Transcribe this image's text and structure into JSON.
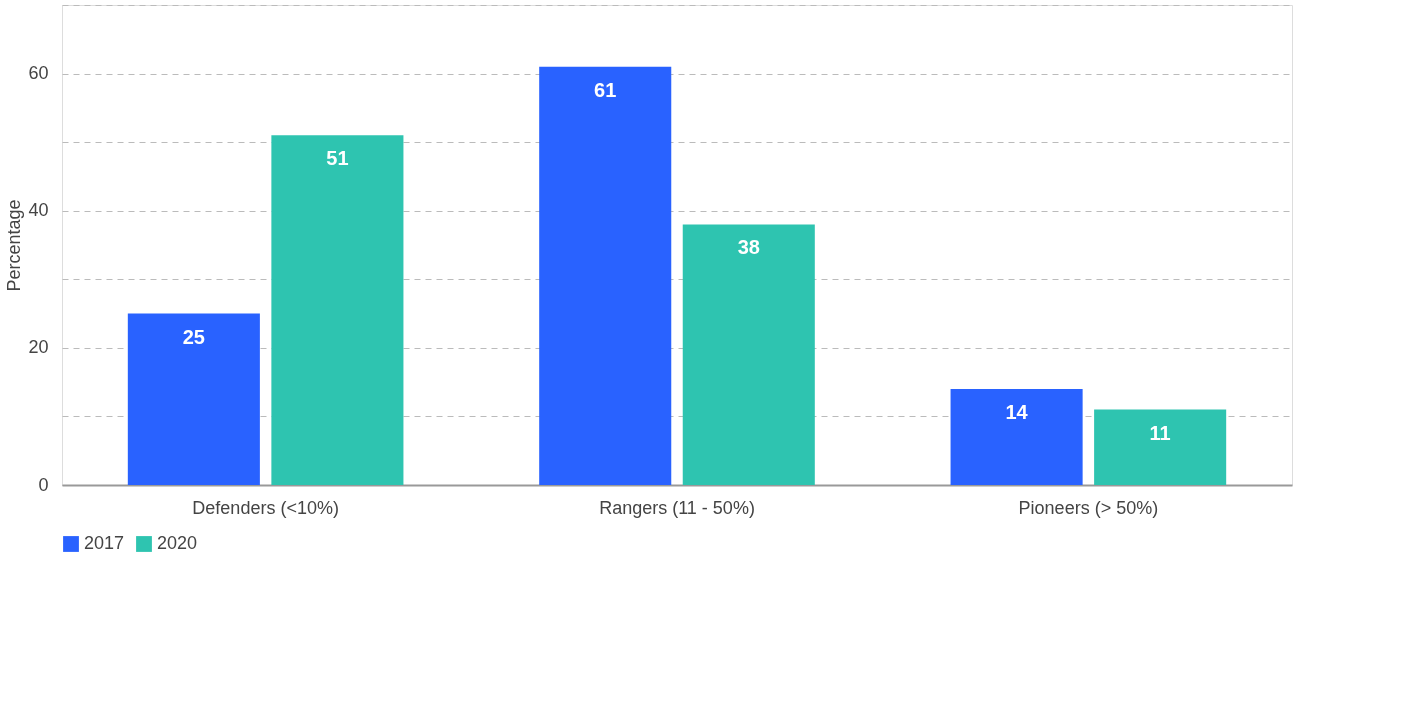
{
  "chart_data": {
    "type": "bar",
    "ylabel": "Percentage",
    "categories": [
      "Defenders (<10%)",
      "Rangers (11 - 50%)",
      "Pioneers (> 50%)"
    ],
    "series": [
      {
        "name": "2017",
        "color": "#2962ff",
        "values": [
          25,
          61,
          14
        ]
      },
      {
        "name": "2020",
        "color": "#2ec4b0",
        "values": [
          51,
          38,
          11
        ]
      }
    ],
    "ylim": [
      0,
      70
    ],
    "yticks": [
      0,
      {
        "value": 10,
        "label": null
      },
      20,
      {
        "value": 30,
        "label": null
      },
      40,
      {
        "value": 50,
        "label": null
      },
      60,
      {
        "value": 70,
        "label": null
      }
    ],
    "grid": "y",
    "legend": "bottom",
    "data_labels": true
  }
}
